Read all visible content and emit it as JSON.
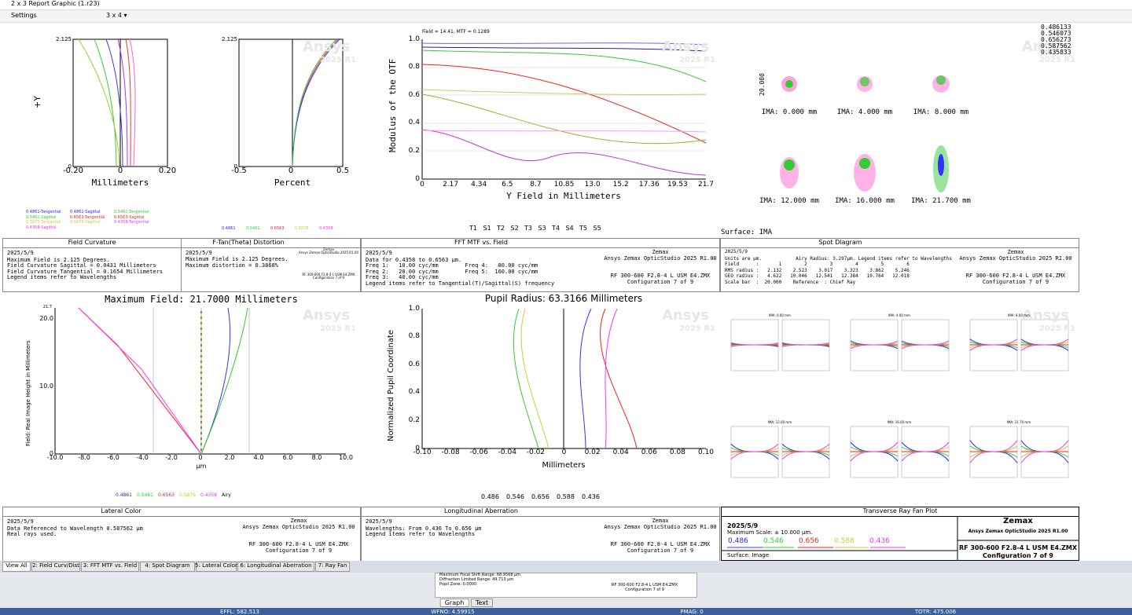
{
  "window": {
    "title": "2 x 3 Report Graphic (1.r23)"
  },
  "toolbar": {
    "settings": "Settings",
    "layout": "3 x 4 ▾"
  },
  "watermark": {
    "brand": "Ansys",
    "version": "2025 R1"
  },
  "field_curvature": {
    "y_label": "+Y",
    "x_label": "Millimeters",
    "yticks": [
      "2.125",
      "0"
    ],
    "xticks": [
      "-0.20",
      "0",
      "0.20"
    ],
    "legend": [
      "0.4861-Tangential",
      "0.4861-Sagittal",
      "0.5461-Tangential",
      "0.5461-Sagittal",
      "0.6563-Tangential",
      "0.6563-Sagittal",
      "0.5876-Tangential",
      "0.5876-Sagittal",
      "0.4358-Tangential",
      "0.4358-Sagittal"
    ],
    "box": {
      "title": "Field Curvature",
      "lines": [
        "2025/5/9",
        "Maximum Field is 2.125 Degrees.",
        "Field Curvature Sagittal = 0.0431 Millimeters",
        "Field Curvature Tangential = 0.1654 Millimeters",
        "Legend items refer to Wavelengths"
      ]
    }
  },
  "distortion": {
    "x_label": "Percent",
    "yticks": [
      "2.125",
      "0"
    ],
    "xticks": [
      "-0.5",
      "0",
      "0.5"
    ],
    "legend": [
      "0.4861",
      "0.5461",
      "0.6563",
      "0.5876",
      "0.4358"
    ],
    "box": {
      "title": "F-Tan(Theta) Distortion",
      "lines": [
        "2025/5/9",
        "Maximum Field is 2.125 Degrees.",
        "Maximum distortion = 0.3868%"
      ],
      "side": [
        "Zemax",
        "Ansys Zemax OpticStudio 2025 R1.00",
        "RF 300-600 F2.8-4 L USM E4.ZMX",
        "Configuration 7 of 9"
      ]
    }
  },
  "mtf": {
    "note": "Field = 14.41, MTF = 0.1289",
    "y_label": "Modulus of the OTF",
    "x_label": "Y Field in Millimeters",
    "yticks": [
      "1.0",
      "0.8",
      "0.6",
      "0.4",
      "0.2",
      "0"
    ],
    "xticks": [
      "0",
      "2.17",
      "4.34",
      "6.5",
      "8.7",
      "10.85",
      "13.0",
      "15.2",
      "17.36",
      "19.53",
      "21.7"
    ],
    "legend": [
      "T1",
      "S1",
      "T2",
      "S2",
      "T3",
      "S3",
      "T4",
      "S4",
      "T5",
      "S5"
    ],
    "box": {
      "title": "FFT MTF vs. Field",
      "lines": [
        "2025/5/9",
        "Data for 0.4358 to 0.6563 µm.",
        "Freq 1:   10.00 cyc/mm        Freq 4:   80.00 cyc/mm",
        "Freq 2:   20.00 cyc/mm        Freq 5:  160.00 cyc/mm",
        "Freq 3:   40.00 cyc/mm",
        "Legend items refer to Tangential(T)/Sagittal(S) frequency"
      ],
      "side": [
        "Zemax",
        "Ansys Zemax OpticStudio 2025 R1.00",
        "RF 300-600 F2.8-4 L USM E4.ZMX",
        "Configuration 7 of 9"
      ]
    }
  },
  "spot": {
    "legend": [
      "0.486133",
      "0.546073",
      "0.656273",
      "0.587562",
      "0.435833"
    ],
    "scale": "20.000",
    "fields": [
      "IMA: 0.000 mm",
      "IMA: 4.000 mm",
      "IMA: 8.000 mm",
      "IMA: 12.000 mm",
      "IMA: 16.000 mm",
      "IMA: 21.700 mm"
    ],
    "surface": "Surface: IMA",
    "box": {
      "title": "Spot Diagram",
      "lines": [
        "2025/5/9",
        "Units are µm.            Airy Radius: 3.297µm. Legend items refer to Wavelengths",
        "Field      :       1        2        3        4        5        6",
        "RMS radius :   2.132    2.523    3.017    3.323    3.862    5.246",
        "GEO radius :   4.622   10.046   12.541   12.384   10.764   12.018",
        "Scale bar  :  20.000    Reference  : Chief Ray"
      ],
      "side": [
        "Zemax",
        "Ansys Zemax OpticStudio 2025 R1.00",
        "RF 300-600 F2.8-4 L USM E4.ZMX",
        "Configuration 7 of 9"
      ]
    }
  },
  "lateral_color": {
    "title": "Maximum Field: 21.7000 Millimeters",
    "y_label": "Field: Real Image Height in Millimeters",
    "x_label": "µm",
    "ytop": "21.7",
    "yticks": [
      "20.0",
      "10.0",
      "0"
    ],
    "xticks": [
      "-10.0",
      "-8.0",
      "-6.0",
      "-4.0",
      "-2.0",
      "0",
      "2.0",
      "4.0",
      "6.0",
      "8.0",
      "10.0"
    ],
    "legend": [
      "0.4861",
      "0.5461",
      "0.6563",
      "0.5876",
      "0.4358",
      "Airy"
    ],
    "box": {
      "title": "Lateral Color",
      "lines": [
        "2025/5/9",
        "Data Referenced to Wavelength 0.587562 µm",
        "Real rays used."
      ],
      "side": [
        "Zemax",
        "Ansys Zemax OpticStudio 2025 R1.00",
        "RF 300-600 F2.8-4 L USM E4.ZMX",
        "Configuration 7 of 9"
      ]
    }
  },
  "longitudinal": {
    "title": "Pupil Radius: 63.3166 Millimeters",
    "y_label": "Normalized Pupil Coordinate",
    "x_label": "Millimeters",
    "yticks": [
      "1.0",
      "0.8",
      "0.6",
      "0.4",
      "0.2",
      "0"
    ],
    "xticks": [
      "-0.10",
      "-0.08",
      "-0.06",
      "-0.04",
      "-0.02",
      "0",
      "0.02",
      "0.04",
      "0.06",
      "0.08",
      "0.10"
    ],
    "legend": [
      "0.486",
      "0.546",
      "0.656",
      "0.588",
      "0.436"
    ],
    "box": {
      "title": "Longitudinal Aberration",
      "lines": [
        "2025/5/9",
        "Wavelengths: From 0.436 To 0.656 µm",
        "Legend items refer to Wavelengths"
      ],
      "side": [
        "Zemax",
        "Ansys Zemax OpticStudio 2025 R1.00",
        "RF 300-600 F2.8-4 L USM E4.ZMX",
        "Configuration 7 of 9"
      ]
    }
  },
  "ray_fan": {
    "fields": [
      "IMA: 0.00 mm",
      "IMA: 4.00 mm",
      "IMA: 8.00 mm",
      "IMA: 12.00 mm",
      "IMA: 16.00 mm",
      "IMA: 21.70 mm"
    ],
    "box": {
      "title": "Transverse Ray Fan Plot",
      "date": "2025/5/9",
      "scale": "Maximum Scale: ± 10.000 µm.",
      "wavelengths": [
        "0.486",
        "0.546",
        "0.656",
        "0.588",
        "0.436"
      ],
      "surface": "Surface: Image",
      "side": [
        "Zemax",
        "Ansys Zemax OpticStudio 2025 R1.00",
        "RF 300-600 F2.8-4 L USM E4.ZMX",
        "Configuration 7 of 9"
      ]
    }
  },
  "tabs": [
    "View All",
    "2: Field Curv/Dist",
    "3: FFT MTF vs. Field",
    "4: Spot Diagram",
    "5: Lateral Color",
    "6: Longitudinal Aberration",
    "7: Ray Fan"
  ],
  "preview": {
    "lines": [
      "Maximum Focal Shift Range: 68.9568 µm",
      "Diffraction Limited Range: 49.713 µm",
      "Pupil Zone: 0.0000"
    ],
    "side": [
      "RF 300-600 F2.8-4 L USM E4.ZMX",
      "Configuration 7 of 9"
    ],
    "tabs": [
      "Graph",
      "Text"
    ]
  },
  "status": [
    "EFFL: 582.513",
    "WFNO: 4.59915",
    "PMAG: 0",
    "TOTR: 475.006"
  ]
}
